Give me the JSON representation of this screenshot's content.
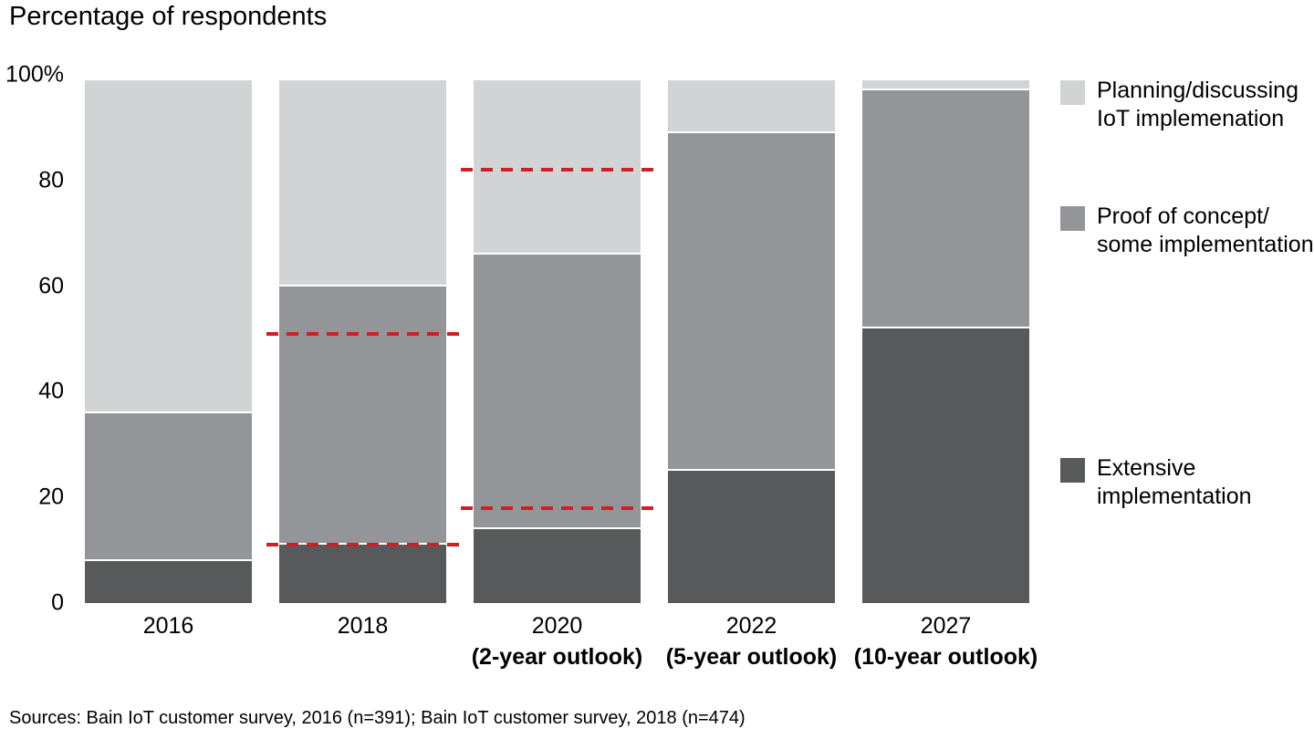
{
  "title": "Percentage of respondents",
  "source": "Sources: Bain IoT customer survey, 2016 (n=391); Bain IoT customer survey, 2018 (n=474)",
  "colors": {
    "planning": "#d1d3d4",
    "proof": "#939598",
    "extensive": "#58595b",
    "guide_red": "#cb2026",
    "text": "#000000",
    "separator": "#ffffff"
  },
  "chart_data": {
    "type": "bar",
    "variant": "stacked",
    "title": "Percentage of respondents",
    "xlabel": "",
    "ylabel": "Percentage of respondents",
    "ylim": [
      0,
      100
    ],
    "grid": false,
    "legend_position": "right",
    "yticks": [
      {
        "value": 100,
        "label": "100%"
      },
      {
        "value": 80,
        "label": "80"
      },
      {
        "value": 60,
        "label": "60"
      },
      {
        "value": 40,
        "label": "40"
      },
      {
        "value": 20,
        "label": "20"
      },
      {
        "value": 0,
        "label": "0"
      }
    ],
    "categories": [
      {
        "label": "2016",
        "sublabel": ""
      },
      {
        "label": "2018",
        "sublabel": ""
      },
      {
        "label": "2020",
        "sublabel": "(2-year outlook)"
      },
      {
        "label": "2022",
        "sublabel": "(5-year outlook)"
      },
      {
        "label": "2027",
        "sublabel": "(10-year outlook)"
      }
    ],
    "series": [
      {
        "name": "Extensive implementation",
        "color_key": "extensive",
        "color": "#58595b",
        "values": [
          8,
          11,
          14,
          25,
          52
        ]
      },
      {
        "name": "Proof of concept/some implementation",
        "color_key": "proof",
        "color": "#939598",
        "values": [
          28,
          49,
          52,
          64,
          45
        ]
      },
      {
        "name": "Planning/discussing IoT implemenation",
        "color_key": "planning",
        "color": "#d1d3d4",
        "values": [
          63,
          39,
          33,
          10,
          2
        ]
      }
    ],
    "stack_order_bottom_to_top": [
      "Extensive implementation",
      "Proof of concept/some implementation",
      "Planning/discussing IoT implemenation"
    ],
    "guides": {
      "style": "dashed",
      "color": "#cb2026",
      "lines": [
        {
          "category": "2018",
          "value": 11
        },
        {
          "category": "2018",
          "value": 51
        },
        {
          "category": "2020",
          "value": 18
        },
        {
          "category": "2020",
          "value": 82
        }
      ]
    }
  },
  "legend": {
    "items": [
      {
        "series": "Planning/discussing IoT implemenation",
        "color_key": "planning",
        "lines": [
          "Planning/discussing",
          "IoT implemenation"
        ]
      },
      {
        "series": "Proof of concept/some implementation",
        "color_key": "proof",
        "lines": [
          "Proof of concept/",
          "some implementation"
        ]
      },
      {
        "series": "Extensive implementation",
        "color_key": "extensive",
        "lines": [
          "Extensive",
          "implementation"
        ]
      }
    ]
  }
}
